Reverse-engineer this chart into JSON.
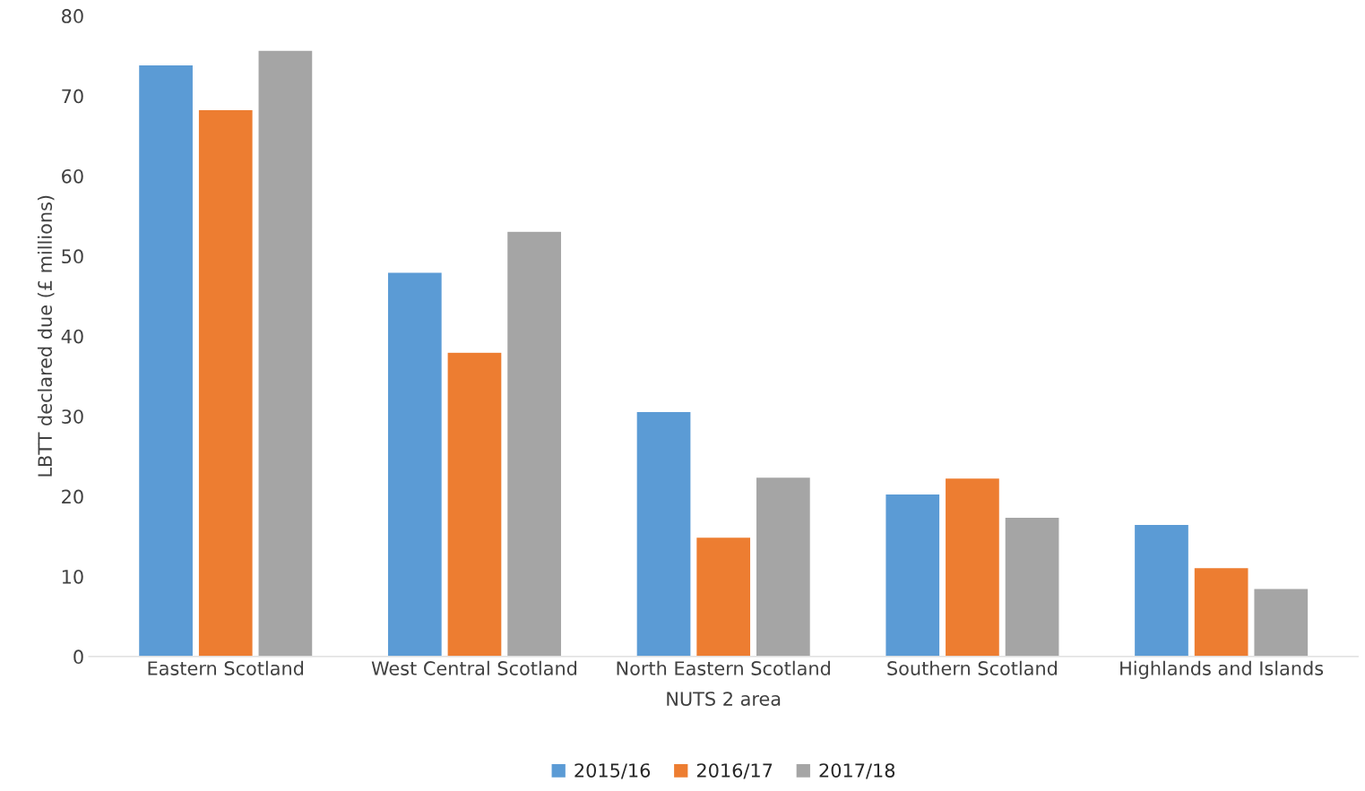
{
  "chart_data": {
    "type": "bar",
    "xlabel": "NUTS 2 area",
    "ylabel": "LBTT declared due (£ millions)",
    "categories": [
      "Eastern Scotland",
      "West Central Scotland",
      "North Eastern Scotland",
      "Southern Scotland",
      "Highlands and Islands"
    ],
    "series": [
      {
        "name": "2015/16",
        "color": "#5b9bd5",
        "values": [
          73.9,
          48.0,
          30.6,
          20.3,
          16.5
        ]
      },
      {
        "name": "2016/17",
        "color": "#ed7d31",
        "values": [
          68.3,
          38.0,
          14.9,
          22.3,
          11.1
        ]
      },
      {
        "name": "2017/18",
        "color": "#a5a5a5",
        "values": [
          75.7,
          53.1,
          22.4,
          17.4,
          8.5
        ]
      }
    ],
    "ylim": [
      0,
      80
    ],
    "yticks": [
      0,
      10,
      20,
      30,
      40,
      50,
      60,
      70,
      80
    ],
    "grid": false,
    "legend": "bottom"
  }
}
